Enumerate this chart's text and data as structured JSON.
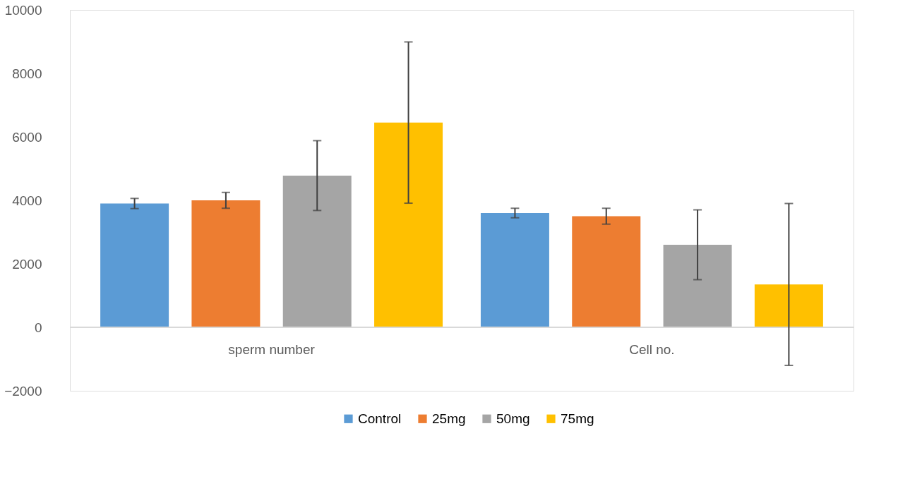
{
  "chart_data": {
    "type": "bar",
    "categories": [
      "sperm number",
      "Cell no."
    ],
    "series": [
      {
        "name": "Control",
        "color": "#5b9bd5",
        "values": [
          3900,
          3600
        ],
        "errors": [
          160,
          150
        ]
      },
      {
        "name": "25mg",
        "color": "#ed7d31",
        "values": [
          4000,
          3500
        ],
        "errors": [
          250,
          250
        ]
      },
      {
        "name": "50mg",
        "color": "#a5a5a5",
        "values": [
          4780,
          2600
        ],
        "errors": [
          1100,
          1100
        ]
      },
      {
        "name": "75mg",
        "color": "#ffc000",
        "values": [
          6450,
          1350
        ],
        "errors": [
          2540,
          2550
        ]
      }
    ],
    "ylim": [
      -2000,
      10000
    ],
    "yticks": [
      -2000,
      0,
      2000,
      4000,
      6000,
      8000,
      10000
    ],
    "grid": false,
    "legend": "bottom"
  }
}
